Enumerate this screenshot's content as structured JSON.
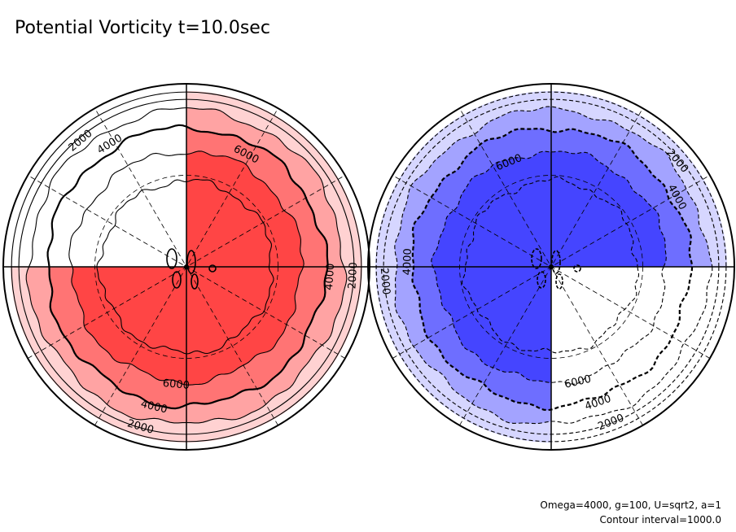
{
  "title": "Potential Vorticity t=10.0sec",
  "footnote": {
    "line1": "Omega=4000, g=100, U=sqrt2, a=1",
    "line2": "Contour interval=1000.0"
  },
  "colors": {
    "positive_1": "#ffd2d2",
    "positive_2": "#ffa3a3",
    "positive_3": "#ff7474",
    "positive_4": "#ff4545",
    "negative_1": "#d6d6ff",
    "negative_2": "#a3a3ff",
    "negative_3": "#6e6eff",
    "negative_4": "#4545ff",
    "line": "#000000"
  },
  "chart_data": {
    "type": "heatmap",
    "title": "Potential Vorticity t=10.0sec",
    "projection": "polar",
    "contour_interval": 1000.0,
    "panels": [
      {
        "name": "left",
        "sign": "positive",
        "filled_quadrants": [
          "top-right",
          "bottom-left",
          "bottom-right"
        ],
        "levels": [
          2000,
          4000,
          6000,
          8000
        ],
        "contour_labels": [
          {
            "text": "2000",
            "level": 2000,
            "pos": "upper-left"
          },
          {
            "text": "4000",
            "level": 4000,
            "pos": "upper-left"
          },
          {
            "text": "6000",
            "level": 6000,
            "pos": "upper-right"
          },
          {
            "text": "4000",
            "level": 4000,
            "pos": "right"
          },
          {
            "text": "2000",
            "level": 2000,
            "pos": "right"
          },
          {
            "text": "6000",
            "level": 6000,
            "pos": "lower"
          },
          {
            "text": "4000",
            "level": 4000,
            "pos": "lower"
          },
          {
            "text": "2000",
            "level": 2000,
            "pos": "lower"
          }
        ]
      },
      {
        "name": "right",
        "sign": "negative",
        "filled_quadrants": [
          "top-left",
          "top-right",
          "bottom-left"
        ],
        "levels": [
          -2000,
          -4000,
          -6000,
          -8000
        ],
        "contour_labels": [
          {
            "text": "6000",
            "level": -6000,
            "pos": "upper-left"
          },
          {
            "text": "2000",
            "level": -2000,
            "pos": "upper-right"
          },
          {
            "text": "4000",
            "level": -4000,
            "pos": "upper-right"
          },
          {
            "text": "2000",
            "level": -2000,
            "pos": "left"
          },
          {
            "text": "4000",
            "level": -4000,
            "pos": "left"
          },
          {
            "text": "6000",
            "level": -6000,
            "pos": "lower"
          },
          {
            "text": "4000",
            "level": -4000,
            "pos": "lower"
          },
          {
            "text": "2000",
            "level": -2000,
            "pos": "lower"
          }
        ]
      }
    ]
  }
}
